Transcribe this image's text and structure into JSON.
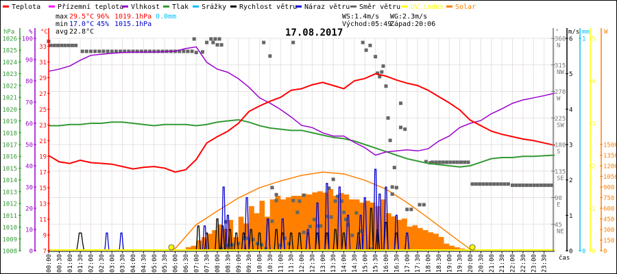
{
  "legend": [
    {
      "label": "Teplota",
      "color": "#ff0000"
    },
    {
      "label": "Přízemní teplota",
      "color": "#ff00ff"
    },
    {
      "label": "Vlhkost",
      "color": "#9900cc"
    },
    {
      "label": "Tlak",
      "color": "#339933"
    },
    {
      "label": "Srážky",
      "color": "#00bfff"
    },
    {
      "label": "Rychlost větru",
      "color": "#000000"
    },
    {
      "label": "Náraz větru",
      "color": "#0000cc"
    },
    {
      "label": "Směr větru",
      "color": "#666666"
    },
    {
      "label": "UV index",
      "color": "#ffff00"
    },
    {
      "label": "Solar",
      "color": "#ff8000"
    }
  ],
  "stats": {
    "max_label": "max",
    "max_temp": "29.5°C",
    "max_hum": "96%",
    "max_press": "1019.1hPa",
    "rain": "0.0mm",
    "min_label": "min",
    "min_temp": "17.0°C",
    "min_hum": "45%",
    "min_press": "1015.1hPa",
    "avg_label": "avg",
    "avg_temp": "22.8°C",
    "ws": "WS:1.4m/s",
    "wg": "WG:2.3m/s",
    "sunrise": "Východ:05:49",
    "sunset": "Západ:20:06"
  },
  "chart_data": {
    "type": "line",
    "title": "17.08.2017",
    "xlabel": "čas",
    "xlim": [
      0,
      24
    ],
    "x_ticks": [
      "00:00",
      "00:30",
      "01:00",
      "01:30",
      "02:00",
      "02:30",
      "03:00",
      "03:30",
      "04:00",
      "04:30",
      "05:00",
      "05:30",
      "06:00",
      "06:30",
      "07:00",
      "07:30",
      "08:00",
      "08:30",
      "09:00",
      "09:30",
      "10:00",
      "10:30",
      "11:00",
      "11:30",
      "12:00",
      "12:30",
      "13:00",
      "13:30",
      "14:00",
      "14:30",
      "15:00",
      "15:30",
      "16:00",
      "16:30",
      "17:00",
      "17:30",
      "18:00",
      "18:30",
      "19:00",
      "19:30",
      "20:00",
      "20:30",
      "21:00",
      "21:30",
      "22:00",
      "22:30",
      "23:00",
      "23:30"
    ],
    "grid": true,
    "axes": {
      "pressure": {
        "unit": "hPa",
        "range": [
          1008,
          1026
        ],
        "ticks": [
          "1008",
          "1009",
          "1010",
          "1011",
          "1012",
          "1013",
          "1014",
          "1015",
          "1016",
          "1017",
          "1018",
          "1019",
          "1020",
          "1021",
          "1022",
          "1023",
          "1024",
          "1025",
          "1026"
        ],
        "color": "#339933"
      },
      "humidity": {
        "unit": "%",
        "range": [
          0,
          100
        ],
        "ticks": [
          "0",
          "10",
          "20",
          "30",
          "40",
          "50",
          "60",
          "70",
          "80",
          "90",
          "100"
        ],
        "color": "#9900cc"
      },
      "temperature": {
        "unit": "°C",
        "range": [
          7,
          34
        ],
        "ticks": [
          "7",
          "9",
          "11",
          "13",
          "15",
          "17",
          "19",
          "21",
          "23",
          "25",
          "27",
          "29",
          "31",
          "33"
        ],
        "color": "#ff0000"
      },
      "direction": {
        "unit": "°",
        "range": [
          0,
          360
        ],
        "ticks": [
          "45",
          "90",
          "135",
          "180",
          "225",
          "270",
          "315",
          "360"
        ],
        "compass": [
          "NE",
          "E",
          "SE",
          "S",
          "SW",
          "W",
          "NW",
          "N"
        ],
        "color": "#777777"
      },
      "wind": {
        "unit": "m/s",
        "range": [
          0,
          6
        ],
        "ticks": [
          "0",
          "1",
          "2",
          "3",
          "4",
          "5",
          "6"
        ],
        "color": "#000000"
      },
      "rain": {
        "unit": "mm",
        "range": [
          0,
          1
        ],
        "ticks": [
          "0",
          "1"
        ],
        "color": "#00bfff"
      },
      "uv": {
        "unit": "",
        "range": [
          0,
          5
        ],
        "ticks": [
          "0",
          "1",
          "2",
          "3",
          "4",
          "5"
        ],
        "color": "#ffff00"
      },
      "solar": {
        "unit": "W",
        "range": [
          0,
          3000
        ],
        "ticks": [
          "0",
          "150",
          "300",
          "450",
          "600",
          "750",
          "900",
          "1050",
          "1200",
          "1350",
          "1500"
        ],
        "color": "#ff8000"
      }
    },
    "series": {
      "temperature": {
        "name": "Teplota",
        "step_h": 0.5,
        "values": [
          19.1,
          18.3,
          18.1,
          18.5,
          18.2,
          18.1,
          18.0,
          17.7,
          17.4,
          17.6,
          17.7,
          17.5,
          17.0,
          17.3,
          18.6,
          20.7,
          21.5,
          22.2,
          23.2,
          24.7,
          25.4,
          26.0,
          26.5,
          27.4,
          27.6,
          28.1,
          28.4,
          28.0,
          27.6,
          28.6,
          28.9,
          29.5,
          29.2,
          28.7,
          28.3,
          28.0,
          27.4,
          26.6,
          25.8,
          24.9,
          23.6,
          22.9,
          22.2,
          21.8,
          21.5,
          21.2,
          21.0,
          20.7,
          20.4
        ]
      },
      "humidity": {
        "name": "Vlhkost",
        "step_h": 0.5,
        "values": [
          84.5,
          85.5,
          87,
          89.7,
          92,
          92.5,
          93,
          93.3,
          93.5,
          93.5,
          93.5,
          93.7,
          94,
          95.2,
          96,
          88.7,
          85.5,
          84,
          81,
          77,
          72,
          69.5,
          66.5,
          63,
          59,
          58,
          55.5,
          54,
          54,
          51,
          48.5,
          45,
          46.5,
          47,
          47.5,
          47,
          48,
          51.6,
          54,
          58,
          60,
          61.3,
          64.5,
          66.8,
          69.4,
          71,
          72,
          73,
          74.2
        ]
      },
      "pressure": {
        "name": "Tlak",
        "step_h": 0.5,
        "values": [
          1018.6,
          1018.6,
          1018.7,
          1018.7,
          1018.8,
          1018.8,
          1018.9,
          1018.9,
          1018.8,
          1018.7,
          1018.6,
          1018.7,
          1018.7,
          1018.7,
          1018.6,
          1018.7,
          1018.9,
          1019.0,
          1019.1,
          1018.9,
          1018.6,
          1018.4,
          1018.3,
          1018.2,
          1018.2,
          1018.0,
          1017.8,
          1017.6,
          1017.5,
          1017.3,
          1017.0,
          1016.7,
          1016.4,
          1016.1,
          1015.8,
          1015.6,
          1015.4,
          1015.3,
          1015.2,
          1015.1,
          1015.2,
          1015.5,
          1015.8,
          1015.9,
          1015.9,
          1016.0,
          1016.0,
          1016.05,
          1016.1
        ]
      },
      "solar": {
        "name": "Solar",
        "start_h": 6,
        "step_h": 0.25,
        "values": [
          0,
          10,
          50,
          70,
          145,
          190,
          240,
          290,
          370,
          310,
          435,
          190,
          480,
          385,
          630,
          530,
          705,
          480,
          725,
          775,
          725,
          755,
          775,
          775,
          805,
          795,
          825,
          840,
          820,
          870,
          775,
          815,
          795,
          725,
          725,
          680,
          705,
          680,
          630,
          725,
          530,
          485,
          435,
          455,
          340,
          360,
          320,
          290,
          260,
          240,
          195,
          100,
          70,
          50,
          30,
          10,
          0
        ]
      },
      "solar_clear_sky": {
        "name": "Solar max",
        "points": [
          [
            5.82,
            0
          ],
          [
            6,
            30
          ],
          [
            7,
            368
          ],
          [
            8,
            560
          ],
          [
            9,
            745
          ],
          [
            10,
            890
          ],
          [
            11,
            985
          ],
          [
            12,
            1065
          ],
          [
            13,
            1110
          ],
          [
            14,
            1085
          ],
          [
            15,
            995
          ],
          [
            16,
            870
          ],
          [
            17,
            680
          ],
          [
            18,
            465
          ],
          [
            19,
            240
          ],
          [
            20,
            20
          ],
          [
            20.1,
            0
          ]
        ]
      },
      "wind_speed": {
        "name": "Rychlost větru",
        "peaks": [
          [
            1.5,
            0.5,
            0.35
          ],
          [
            7.1,
            0.7
          ],
          [
            7.5,
            0.5
          ],
          [
            8.0,
            0.9
          ],
          [
            8.25,
            0.7
          ],
          [
            8.6,
            0.6
          ],
          [
            8.9,
            0.5
          ],
          [
            9.25,
            0.5
          ],
          [
            9.6,
            0.6
          ],
          [
            10.0,
            0.5
          ],
          [
            10.4,
            0.9
          ],
          [
            10.8,
            0.6
          ],
          [
            11.1,
            0.5
          ],
          [
            11.5,
            0.5
          ],
          [
            11.9,
            0.5
          ],
          [
            12.3,
            0.5
          ],
          [
            12.75,
            0.5
          ],
          [
            13.2,
            0.5
          ],
          [
            13.6,
            0.6
          ],
          [
            14.0,
            0.5
          ],
          [
            14.7,
            0.5
          ],
          [
            15.3,
            1.2
          ],
          [
            15.6,
            0.6
          ],
          [
            16.0,
            0.8
          ],
          [
            16.5,
            0.5
          ],
          [
            17.0,
            0.5
          ]
        ]
      },
      "wind_gust": {
        "name": "Náraz větru",
        "peaks": [
          [
            2.76,
            0.5
          ],
          [
            3.45,
            0.5
          ],
          [
            7.4,
            0.7
          ],
          [
            8.3,
            1.8
          ],
          [
            8.5,
            1.0
          ],
          [
            9.4,
            1.5
          ],
          [
            10.4,
            0.9
          ],
          [
            11.1,
            0.9
          ],
          [
            12.3,
            0.6
          ],
          [
            12.75,
            1.35
          ],
          [
            13.2,
            1.9
          ],
          [
            13.8,
            1.8
          ],
          [
            14.2,
            1.0
          ],
          [
            14.8,
            1.0
          ],
          [
            15.0,
            1.5
          ],
          [
            15.5,
            2.3
          ],
          [
            15.7,
            1.6
          ],
          [
            16.0,
            1.8
          ],
          [
            16.5,
            1.0
          ],
          [
            17.0,
            0.5
          ]
        ]
      },
      "wind_direction": {
        "name": "Směr větru",
        "runs": [
          [
            0.1,
            1.4,
            0.17,
            348
          ],
          [
            1.6,
            6.8,
            0.2,
            338
          ],
          [
            18.2,
            20.0,
            0.17,
            150
          ],
          [
            20.1,
            21.9,
            0.17,
            113
          ],
          [
            22.0,
            24.0,
            0.17,
            111
          ]
        ],
        "points": [
          [
            0,
            355
          ],
          [
            6.9,
            359
          ],
          [
            7.7,
            359
          ],
          [
            7.9,
            359
          ],
          [
            8.1,
            359
          ],
          [
            7.5,
            353
          ],
          [
            7.8,
            353
          ],
          [
            8.0,
            349
          ],
          [
            8.2,
            349
          ],
          [
            10.2,
            353
          ],
          [
            10.5,
            330
          ],
          [
            11.6,
            353
          ],
          [
            7.0,
            336
          ],
          [
            7.3,
            337
          ],
          [
            10.6,
            107
          ],
          [
            10.8,
            95
          ],
          [
            10.8,
            85
          ],
          [
            12.1,
            94
          ],
          [
            11.9,
            84
          ],
          [
            11.8,
            65
          ],
          [
            11.6,
            85
          ],
          [
            10.6,
            50
          ],
          [
            12.6,
            53
          ],
          [
            12.4,
            41
          ],
          [
            12.9,
            42
          ],
          [
            8.4,
            49
          ],
          [
            8.5,
            9
          ],
          [
            8.7,
            10
          ],
          [
            9.0,
            12
          ],
          [
            9.3,
            21
          ],
          [
            9.4,
            21
          ],
          [
            9.7,
            19
          ],
          [
            9.9,
            12
          ],
          [
            10.1,
            10
          ],
          [
            10.3,
            3
          ],
          [
            11.0,
            9
          ],
          [
            11.2,
            21
          ],
          [
            11.4,
            12
          ],
          [
            12.1,
            31
          ],
          [
            8.2,
            3
          ],
          [
            13.5,
            121
          ],
          [
            13.3,
            106
          ],
          [
            13.7,
            92
          ],
          [
            13.9,
            84
          ],
          [
            13.6,
            84
          ],
          [
            14.0,
            65
          ],
          [
            13.2,
            58
          ],
          [
            13.4,
            57
          ],
          [
            14.1,
            53
          ],
          [
            14.6,
            64
          ],
          [
            14.2,
            44
          ],
          [
            12.8,
            42
          ],
          [
            14.4,
            26
          ],
          [
            14.8,
            33
          ],
          [
            15.3,
            3
          ],
          [
            14.9,
            353
          ],
          [
            15.25,
            348
          ],
          [
            15.06,
            340
          ],
          [
            15.5,
            329
          ],
          [
            15.87,
            313
          ],
          [
            15.6,
            301
          ],
          [
            15.8,
            303
          ],
          [
            15.7,
            295
          ],
          [
            16.0,
            279
          ],
          [
            16.7,
            250
          ],
          [
            16.1,
            225
          ],
          [
            16.7,
            209
          ],
          [
            16.9,
            206
          ],
          [
            16.2,
            187
          ],
          [
            16.4,
            141
          ],
          [
            16.3,
            108
          ],
          [
            16.5,
            107
          ],
          [
            16.3,
            96
          ],
          [
            17.6,
            78
          ],
          [
            17.8,
            78
          ],
          [
            17.0,
            70
          ],
          [
            17.2,
            70
          ],
          [
            17.9,
            151
          ],
          [
            18.1,
            149
          ]
        ]
      },
      "uv_index": {
        "name": "UV index",
        "value": 0,
        "markers_h": [
          5.82,
          20.1
        ]
      }
    }
  }
}
